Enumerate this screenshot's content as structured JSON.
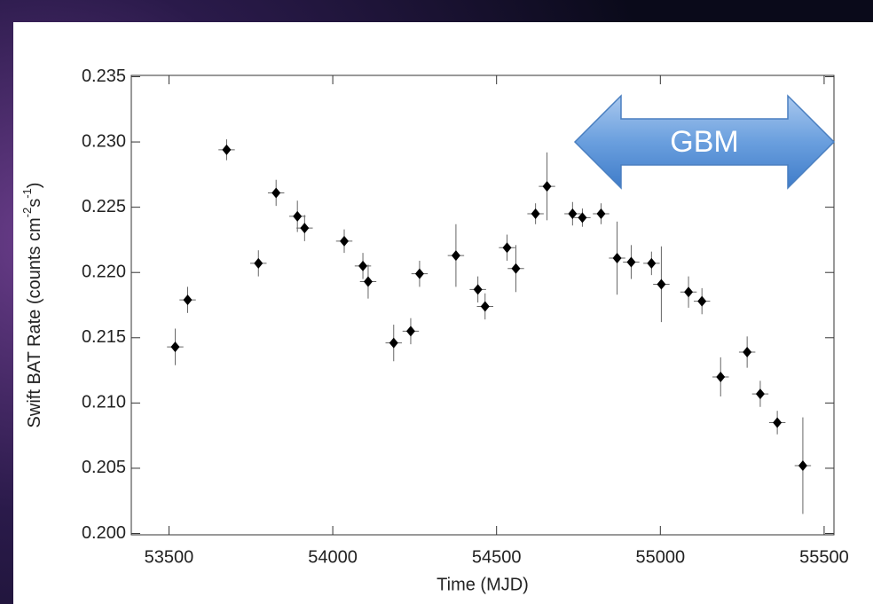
{
  "chart_data": {
    "type": "scatter",
    "x_label": "Time (MJD)",
    "y_label": {
      "text": "Swift BAT Rate (counts cm",
      "sup1": "-2",
      "mid": "s",
      "sup2": "-1",
      "end": ")"
    },
    "annotations": [
      {
        "text": "GBM"
      }
    ],
    "color": "#000000",
    "x": [
      53519,
      53557,
      53676,
      53773,
      53827,
      53892,
      53914,
      54035,
      54092,
      54108,
      54186,
      54238,
      54265,
      54376,
      54443,
      54465,
      54532,
      54559,
      54619,
      54654,
      54732,
      54762,
      54819,
      54868,
      54911,
      54973,
      55003,
      55086,
      55127,
      55184,
      55265,
      55305,
      55357,
      55435
    ],
    "values": [
      0.2143,
      0.2179,
      0.2294,
      0.2207,
      0.2261,
      0.2243,
      0.2234,
      0.2224,
      0.2205,
      0.2193,
      0.2146,
      0.2155,
      0.2199,
      0.2213,
      0.2187,
      0.2174,
      0.2219,
      0.2203,
      0.2245,
      0.2266,
      0.2245,
      0.2242,
      0.2245,
      0.2211,
      0.2208,
      0.2207,
      0.2191,
      0.2185,
      0.2178,
      0.212,
      0.2139,
      0.2107,
      0.2085,
      0.2052
    ],
    "yerr": [
      0.0014,
      0.001,
      0.0008,
      0.001,
      0.001,
      0.0012,
      0.001,
      0.0009,
      0.001,
      0.0013,
      0.0014,
      0.001,
      0.001,
      0.0024,
      0.001,
      0.001,
      0.001,
      0.0018,
      0.0008,
      0.0026,
      0.0009,
      0.0007,
      0.0008,
      0.0028,
      0.0013,
      0.0009,
      0.0029,
      0.0012,
      0.001,
      0.0015,
      0.0012,
      0.001,
      0.0009,
      0.0037
    ],
    "xerr": [
      25,
      25,
      25,
      25,
      25,
      25,
      25,
      25,
      25,
      25,
      25,
      25,
      25,
      25,
      25,
      25,
      25,
      25,
      25,
      25,
      25,
      25,
      25,
      25,
      25,
      25,
      25,
      25,
      25,
      25,
      25,
      25,
      25,
      25
    ],
    "xlim": [
      53385,
      55530
    ],
    "ylim": [
      0.1999,
      0.2351
    ],
    "xticks": [
      53500,
      54000,
      54500,
      55000,
      55500
    ],
    "yticks": [
      {
        "value": 0.2,
        "label": "0.200"
      },
      0.205,
      {
        "value": 0.21,
        "label": "0.210"
      },
      0.215,
      {
        "value": 0.22,
        "label": "0.220"
      },
      0.225,
      {
        "value": 0.23,
        "label": "0.230"
      },
      0.235
    ]
  }
}
